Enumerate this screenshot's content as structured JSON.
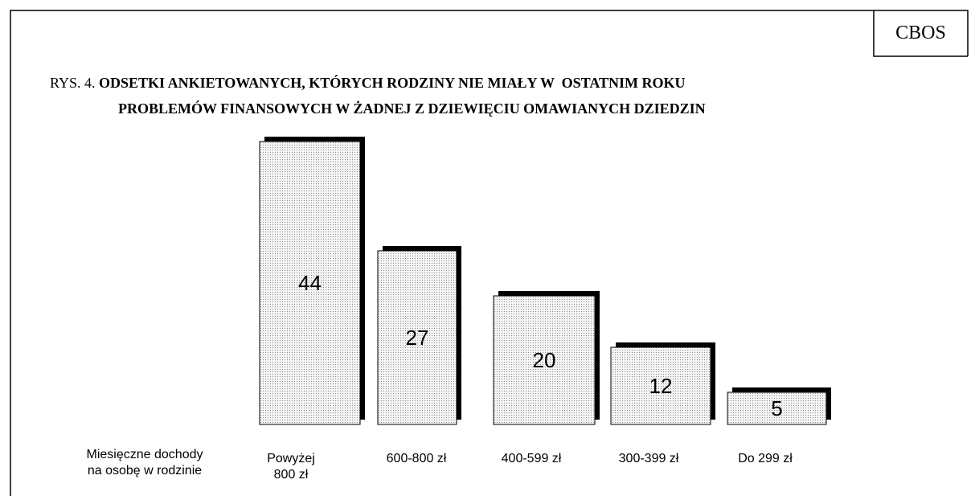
{
  "chart_data": {
    "type": "bar",
    "source": "CBOS",
    "figure_label": "RYS. 4.",
    "title": [
      "ODSETKI ANKIETOWANYCH, KTÓRYCH RODZINY NIE MIAŁY W  OSTATNIM ROKU",
      "PROBLEMÓW FINANSOWYCH W ŻADNEJ Z DZIEWIĘCIU OMAWIANYCH DZIEDZIN"
    ],
    "x_label": [
      "Miesięczne dochody",
      "na osobę w rodzinie"
    ],
    "categories": [
      "Powyżej 800 zł",
      "600-800 zł",
      "400-599 zł",
      "300-399 zł",
      "Do 299 zł"
    ],
    "values": [
      44,
      27,
      20,
      12,
      5
    ],
    "ylim": [
      0,
      50
    ],
    "color": "#e8e8e8"
  }
}
